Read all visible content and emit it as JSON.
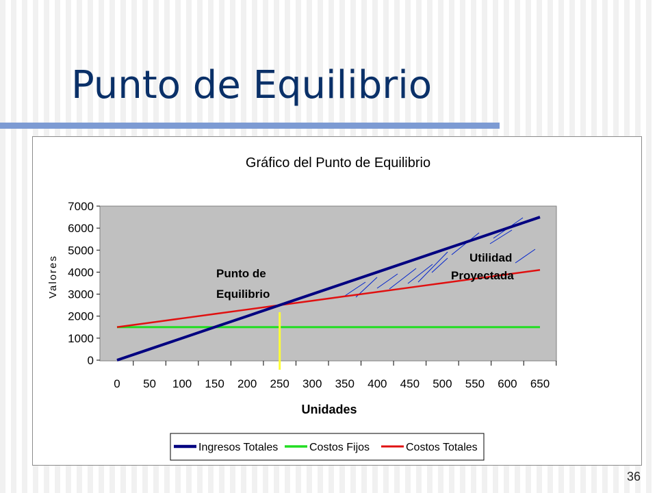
{
  "slide": {
    "title": "Punto de Equilibrio",
    "page_number": "36"
  },
  "colors": {
    "title": "#0a3068",
    "accent_bar": "#7d9bd3",
    "plot_bg": "#c0c0c0"
  },
  "chart_data": {
    "type": "line",
    "title": "Gráfico del Punto de Equilibrio",
    "xlabel": "Unidades",
    "ylabel": "Valores",
    "x": [
      0,
      50,
      100,
      150,
      200,
      250,
      300,
      350,
      400,
      450,
      500,
      550,
      600,
      650
    ],
    "ylim": [
      0,
      7000
    ],
    "yticks": [
      0,
      1000,
      2000,
      3000,
      4000,
      5000,
      6000,
      7000
    ],
    "grid": false,
    "legend_position": "bottom",
    "series": [
      {
        "name": "Ingresos Totales",
        "color": "#000080",
        "values": [
          0,
          500,
          1000,
          1500,
          2000,
          2500,
          3000,
          3500,
          4000,
          4500,
          5000,
          5500,
          6000,
          6500
        ]
      },
      {
        "name": "Costos Fijos",
        "color": "#22dd22",
        "values": [
          1500,
          1500,
          1500,
          1500,
          1500,
          1500,
          1500,
          1500,
          1500,
          1500,
          1500,
          1500,
          1500,
          1500
        ]
      },
      {
        "name": "Costos Totales",
        "color": "#e01010",
        "values": [
          1500,
          1700,
          1900,
          2100,
          2300,
          2500,
          2700,
          2900,
          3100,
          3300,
          3500,
          3700,
          3900,
          4100
        ]
      }
    ],
    "annotations": {
      "break_even_label": [
        "Punto de",
        "Equilibrio"
      ],
      "break_even_x": 250,
      "profit_label": [
        "Utilidad",
        "Proyectada"
      ]
    }
  }
}
